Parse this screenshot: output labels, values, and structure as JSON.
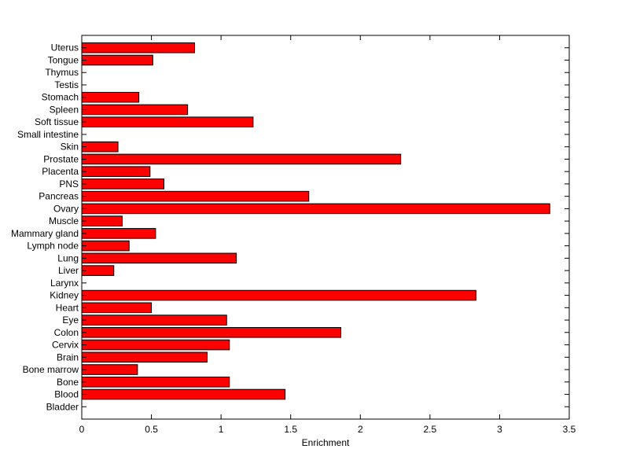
{
  "chart_data": {
    "type": "bar",
    "orientation": "horizontal",
    "categories": [
      "Bladder",
      "Blood",
      "Bone",
      "Bone marrow",
      "Brain",
      "Cervix",
      "Colon",
      "Eye",
      "Heart",
      "Kidney",
      "Larynx",
      "Liver",
      "Lung",
      "Lymph node",
      "Mammary gland",
      "Muscle",
      "Ovary",
      "Pancreas",
      "PNS",
      "Placenta",
      "Prostate",
      "Skin",
      "Small intestine",
      "Soft tissue",
      "Spleen",
      "Stomach",
      "Testis",
      "Thymus",
      "Tongue",
      "Uterus"
    ],
    "values": [
      0,
      1.46,
      1.06,
      0.4,
      0.9,
      1.06,
      1.86,
      1.04,
      0.5,
      2.83,
      0,
      0.23,
      1.11,
      0.34,
      0.53,
      0.29,
      3.36,
      1.63,
      0.59,
      0.49,
      2.29,
      0.26,
      0,
      1.23,
      0.76,
      0.41,
      0,
      0,
      0.51,
      0.81
    ],
    "xlabel": "Enrichment",
    "ylabel": "",
    "title": "",
    "xlim": [
      0,
      3.5
    ],
    "xticks": [
      "0",
      "0.5",
      "1",
      "1.5",
      "2",
      "2.5",
      "3",
      "3.5"
    ],
    "bar_color": "#ff0000",
    "edge_color": "#000000",
    "grid": false
  }
}
